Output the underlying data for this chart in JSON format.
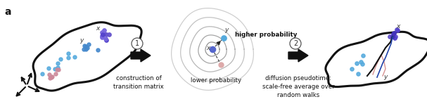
{
  "panel_a_label": "a",
  "background": "#ffffff",
  "text_color": "#111111",
  "circle1_label": "1",
  "circle2_label": "2",
  "label1": "construction of\ntransition matrix",
  "label2": "diffusion pseudotime:\nscale-free average over\nrandom walks",
  "higher_prob_text": "higher probability",
  "lower_prob_text": "lower probability",
  "manifold_color": "#111111",
  "manifold_lw": 2.2,
  "blue_dark": "#4444bb",
  "blue_mid": "#5588cc",
  "blue_light": "#55aadd",
  "pink": "#cc8899",
  "arrow_black": "#111111"
}
